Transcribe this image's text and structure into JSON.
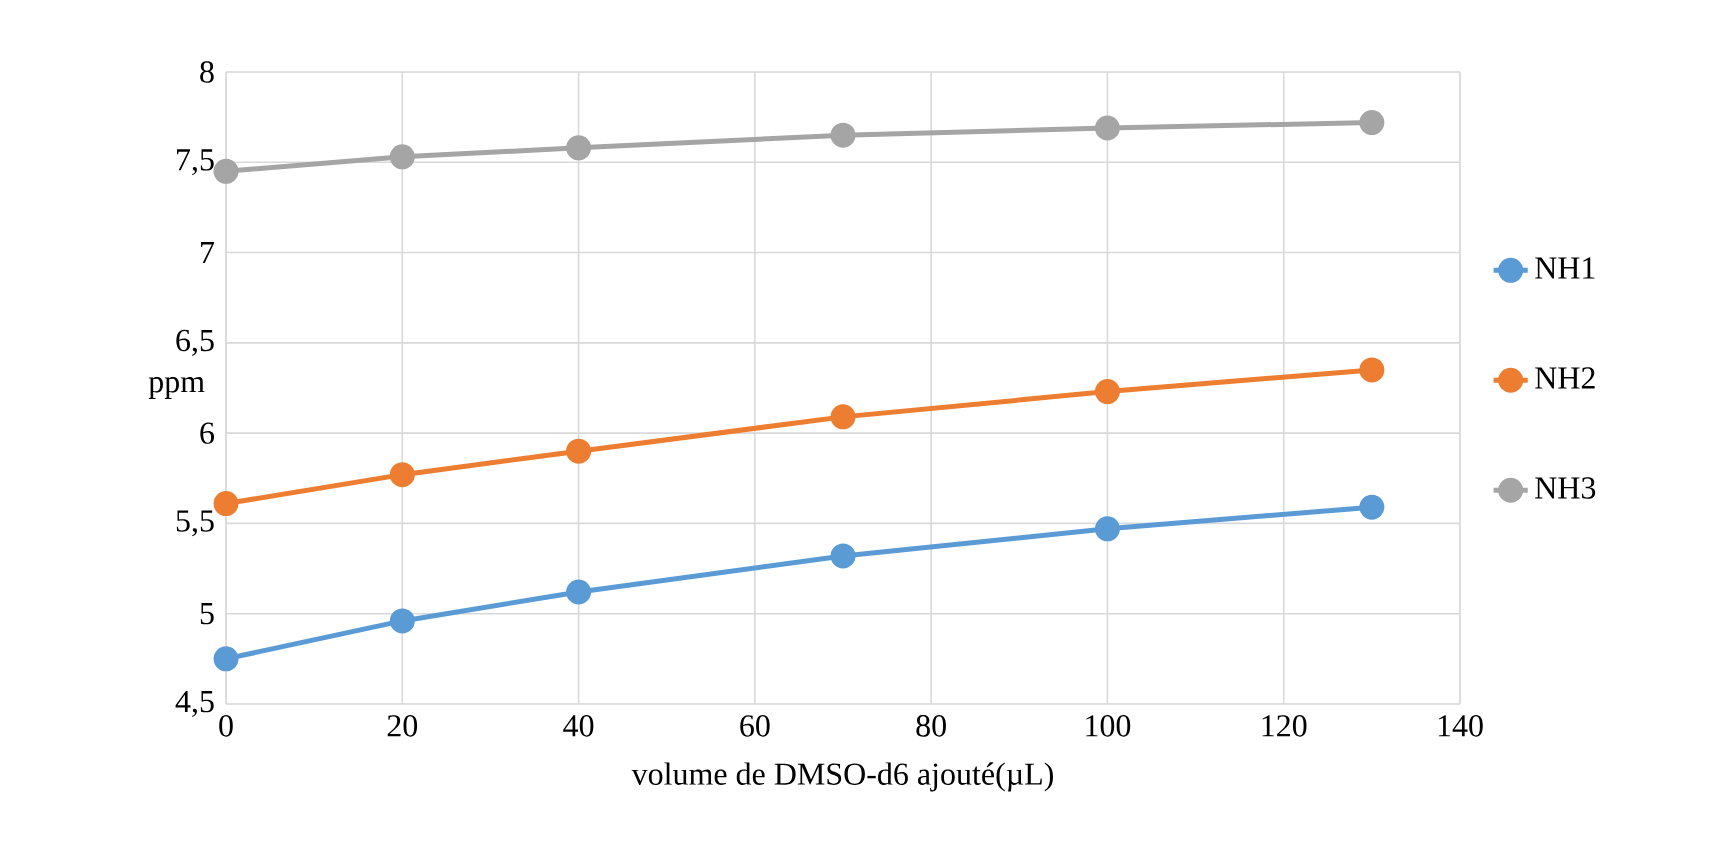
{
  "chart_data": {
    "type": "line",
    "xlabel": "volume de DMSO-d6 ajouté(µL)",
    "ylabel": "ppm",
    "x": [
      0,
      20,
      40,
      70,
      100,
      130
    ],
    "series": [
      {
        "name": "NH1",
        "color": "#5b9bd5",
        "values": [
          4.75,
          4.96,
          5.12,
          5.32,
          5.47,
          5.59
        ]
      },
      {
        "name": "NH2",
        "color": "#ed7d31",
        "values": [
          5.61,
          5.77,
          5.9,
          6.09,
          6.23,
          6.35
        ]
      },
      {
        "name": "NH3",
        "color": "#a5a5a5",
        "values": [
          7.45,
          7.53,
          7.58,
          7.65,
          7.69,
          7.72
        ]
      }
    ],
    "xlim": [
      0,
      140
    ],
    "xticks": [
      0,
      20,
      40,
      60,
      80,
      100,
      120,
      140
    ],
    "ylim": [
      4.5,
      8
    ],
    "yticks": [
      {
        "value": 4.5,
        "label": "4,5"
      },
      5,
      {
        "value": 5.5,
        "label": "5,5"
      },
      6,
      {
        "value": 6.5,
        "label": "6,5"
      },
      7,
      {
        "value": 7.5,
        "label": "7,5"
      },
      8
    ],
    "grid": true,
    "legend": "right",
    "marker": "circle",
    "line_style": "solid"
  }
}
